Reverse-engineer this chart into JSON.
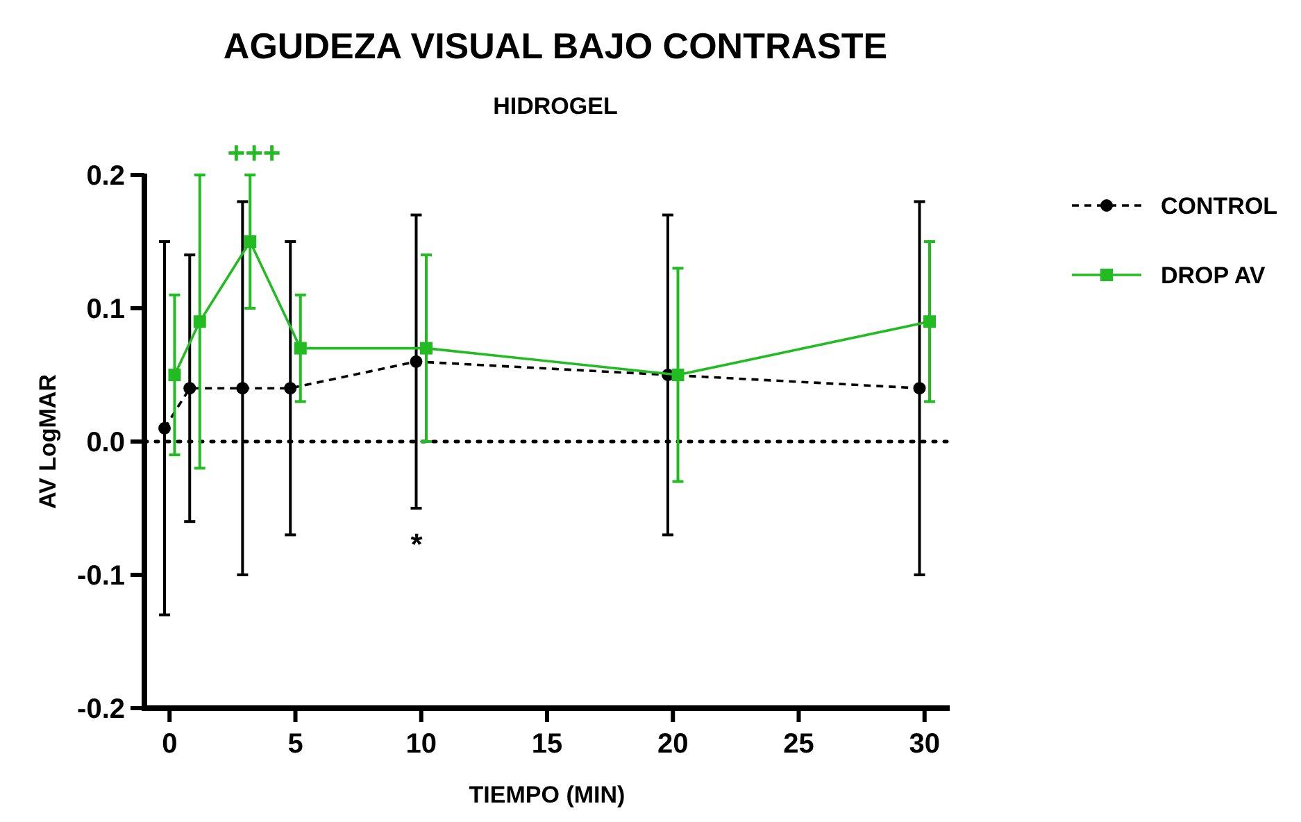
{
  "chart_data": {
    "type": "line",
    "title": "AGUDEZA VISUAL BAJO CONTRASTE",
    "subtitle": "HIDROGEL",
    "xlabel": "TIEMPO (MIN)",
    "ylabel": "AV LogMAR",
    "xlim": [
      -1,
      31
    ],
    "xticks": [
      0,
      5,
      10,
      15,
      20,
      25,
      30
    ],
    "ylim": [
      -0.2,
      0.2
    ],
    "yticks": [
      -0.2,
      -0.1,
      {
        "value": 0,
        "label": "0.0"
      },
      0.1,
      0.2
    ],
    "grid": false,
    "legend": "right",
    "ref_lines": [
      {
        "axis": "y",
        "value": 0,
        "line_style": "dotted",
        "color": "#000000"
      }
    ],
    "annotations": [
      "+++",
      "*"
    ],
    "series": [
      {
        "name": "CONTROL",
        "color": "#000000",
        "marker": "circle",
        "line_style": "dashed",
        "x": [
          -0.2,
          0.8,
          2.9,
          4.8,
          9.8,
          19.8,
          29.8
        ],
        "values": [
          0.01,
          0.04,
          0.04,
          0.04,
          0.06,
          0.05,
          0.04
        ],
        "errors": [
          0.14,
          0.1,
          0.14,
          0.11,
          0.11,
          0.12,
          0.14
        ]
      },
      {
        "name": "DROP AV",
        "color": "#22bb22",
        "marker": "square",
        "line_style": "solid",
        "x": [
          0.2,
          1.2,
          3.2,
          5.2,
          10.2,
          20.2,
          30.2
        ],
        "values": [
          0.05,
          0.09,
          0.15,
          0.07,
          0.07,
          0.05,
          0.09
        ],
        "errors": [
          0.06,
          0.11,
          0.05,
          0.04,
          0.07,
          0.08,
          0.06
        ]
      }
    ]
  }
}
